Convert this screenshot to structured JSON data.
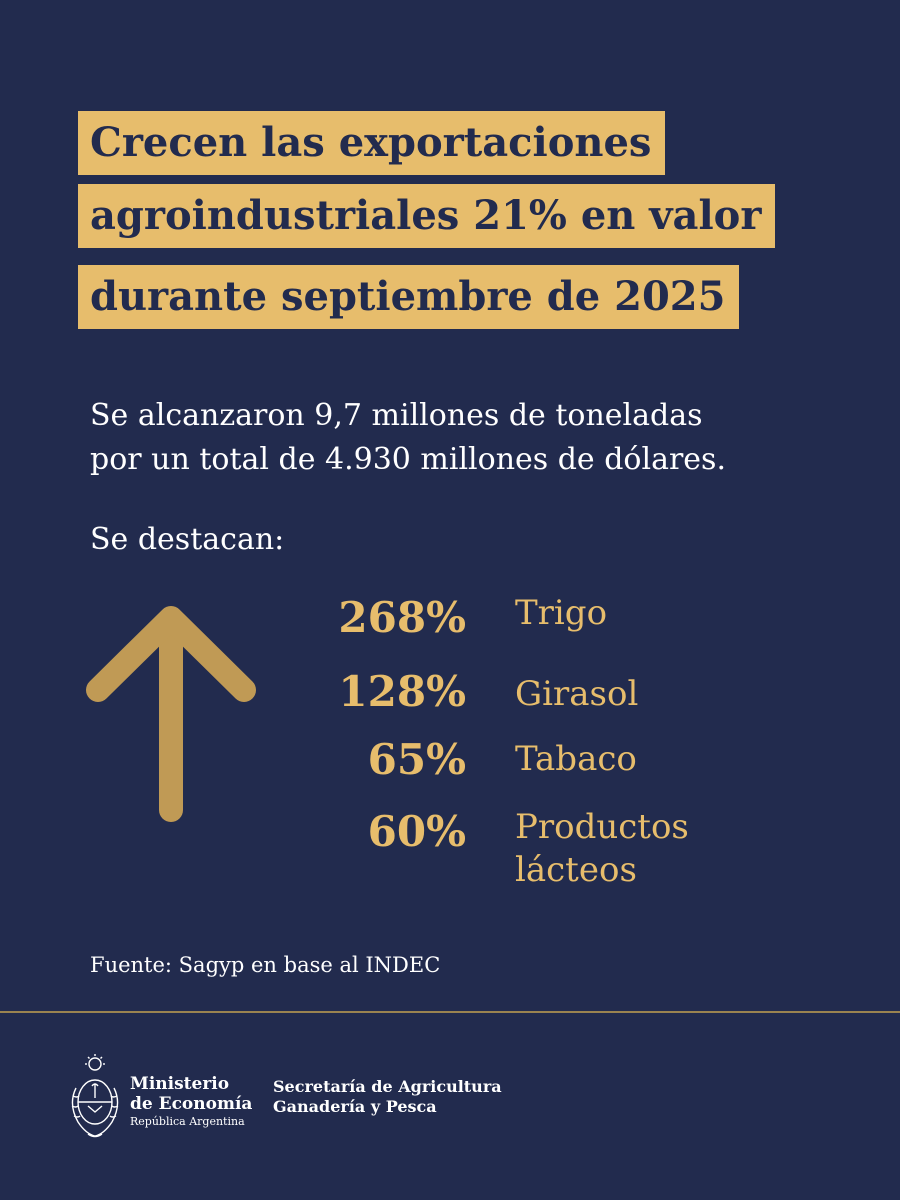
{
  "title": {
    "lines": [
      "Crecen las exportaciones",
      "agroindustriales 21% en valor",
      "durante septiembre de 2025"
    ]
  },
  "subtitle": {
    "lines": [
      "Se alcanzaron 9,7 millones de toneladas",
      "por un total de 4.930 millones de dólares."
    ]
  },
  "highlight_label": "Se destacan:",
  "highlights": [
    {
      "percent": "268%",
      "label_lines": [
        "Trigo"
      ]
    },
    {
      "percent": "128%",
      "label_lines": [
        "Girasol"
      ]
    },
    {
      "percent": "65%",
      "label_lines": [
        "Tabaco"
      ]
    },
    {
      "percent": "60%",
      "label_lines": [
        "Productos",
        "lácteos"
      ]
    }
  ],
  "arrow_icon": "arrow-up-icon",
  "source": "Fuente: Sagyp en base al INDEC",
  "footer": {
    "emblem_icon": "coat-of-arms-icon",
    "ministry_lines": [
      "Ministerio",
      "de Economía"
    ],
    "ministry_country": "República Argentina",
    "secretaria_lines": [
      "Secretaría de Agricultura",
      "Ganadería y Pesca"
    ]
  },
  "colors": {
    "background": "#222b4e",
    "accent": "#e7bd6c",
    "arrow": "#c09a55",
    "text": "#ffffff"
  }
}
